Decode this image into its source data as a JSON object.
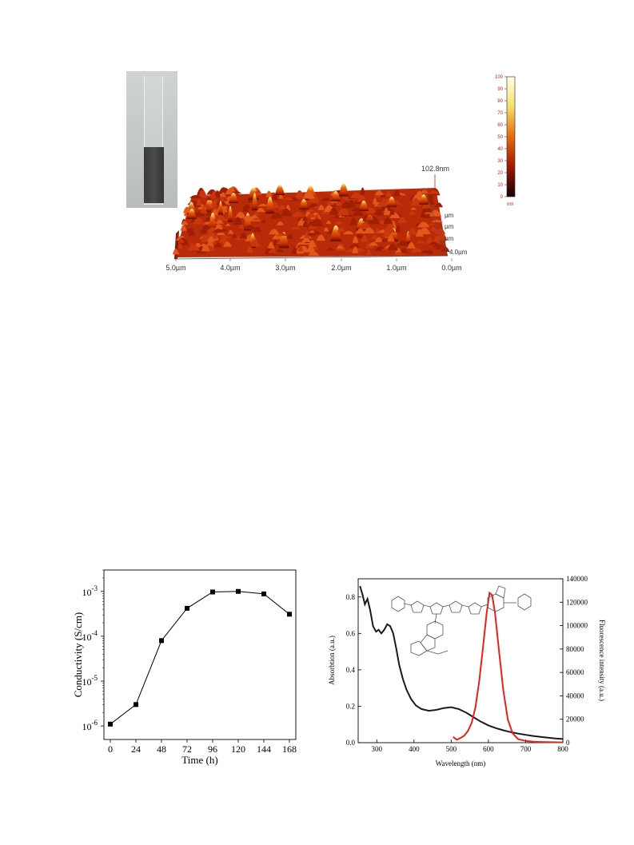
{
  "afm": {
    "peak_label": "102.8nm",
    "x_ticks": [
      "5.0µm",
      "4.0µm",
      "3.0µm",
      "2.0µm",
      "1.0µm",
      "0.0µm"
    ],
    "y_ticks": [
      "µm",
      "µm",
      "µm",
      "4.0µm"
    ],
    "colorbar": {
      "ticks": [
        "100",
        "90",
        "80",
        "70",
        "60",
        "50",
        "40",
        "30",
        "20",
        "10",
        "0"
      ],
      "unit": "nm",
      "tick_color": "#d11f1f"
    },
    "colors": {
      "low": "#1a0000",
      "mid": "#c62a00",
      "high": "#ffff9e"
    }
  },
  "chart_data": [
    {
      "type": "line",
      "x": [
        0,
        24,
        48,
        72,
        96,
        120,
        144,
        168
      ],
      "y": [
        1.1e-06,
        3e-06,
        8e-05,
        0.00042,
        0.00097,
        0.001,
        0.00088,
        0.00031
      ],
      "xlabel": "Time (h)",
      "ylabel": "Conductivity (S/cm)",
      "xlim": [
        -6,
        174
      ],
      "y_scale": "log",
      "ylim": [
        5e-07,
        0.003
      ],
      "x_ticks": [
        "0",
        "24",
        "48",
        "72",
        "96",
        "120",
        "144",
        "168"
      ],
      "y_ticks": [
        {
          "base": "10",
          "exp": "-6"
        },
        {
          "base": "10",
          "exp": "-5"
        },
        {
          "base": "10",
          "exp": "-4"
        },
        {
          "base": "10",
          "exp": "-3"
        }
      ],
      "marker": "square",
      "line_color": "#000000"
    },
    {
      "type": "line",
      "xlabel": "Wavelength (nm)",
      "ylabel": "Absorbtion (a.u.)",
      "ylabel_right": "Fluorescence intensity (a.u.)",
      "xlim": [
        250,
        800
      ],
      "ylim": [
        0,
        0.9
      ],
      "ylim_right": [
        0,
        140000
      ],
      "x_ticks": [
        "300",
        "400",
        "500",
        "600",
        "700",
        "800"
      ],
      "y_ticks": [
        "0.0",
        "0.2",
        "0.4",
        "0.6",
        "0.8"
      ],
      "y_ticks_right": [
        "0",
        "20000",
        "40000",
        "60000",
        "80000",
        "100000",
        "120000",
        "140000"
      ],
      "series": [
        {
          "axis": "left",
          "color": "#1a1a1a",
          "x": [
            255,
            262,
            268,
            275,
            282,
            290,
            298,
            305,
            312,
            320,
            328,
            336,
            344,
            352,
            360,
            370,
            380,
            392,
            405,
            420,
            440,
            460,
            480,
            500,
            520,
            540,
            560,
            580,
            600,
            620,
            640,
            660,
            680,
            700,
            720,
            740,
            760,
            780,
            800
          ],
          "y": [
            0.86,
            0.81,
            0.76,
            0.79,
            0.73,
            0.64,
            0.61,
            0.62,
            0.6,
            0.62,
            0.65,
            0.64,
            0.6,
            0.52,
            0.43,
            0.35,
            0.29,
            0.24,
            0.205,
            0.185,
            0.175,
            0.18,
            0.19,
            0.195,
            0.185,
            0.165,
            0.14,
            0.115,
            0.095,
            0.08,
            0.068,
            0.058,
            0.05,
            0.043,
            0.037,
            0.032,
            0.027,
            0.023,
            0.02
          ]
        },
        {
          "axis": "right",
          "color": "#e8201c",
          "x": [
            505,
            515,
            525,
            535,
            545,
            555,
            565,
            575,
            585,
            595,
            603,
            610,
            618,
            628,
            640,
            652,
            665,
            680,
            700,
            720,
            740,
            770,
            800
          ],
          "y": [
            5000,
            2500,
            4000,
            6000,
            10000,
            17000,
            30000,
            52000,
            80000,
            110000,
            128000,
            126000,
            110000,
            80000,
            45000,
            20000,
            8000,
            3000,
            1500,
            900,
            600,
            400,
            300
          ]
        }
      ],
      "inset": "chemical structure"
    }
  ]
}
